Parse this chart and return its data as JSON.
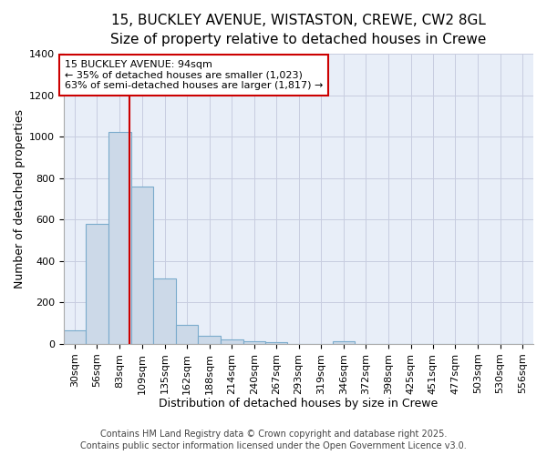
{
  "title_line1": "15, BUCKLEY AVENUE, WISTASTON, CREWE, CW2 8GL",
  "title_line2": "Size of property relative to detached houses in Crewe",
  "xlabel": "Distribution of detached houses by size in Crewe",
  "ylabel": "Number of detached properties",
  "bar_color": "#ccd9e8",
  "bar_edge_color": "#7aabcc",
  "background_color": "#e8eef8",
  "grid_color": "#c8cce0",
  "categories": [
    "30sqm",
    "56sqm",
    "83sqm",
    "109sqm",
    "135sqm",
    "162sqm",
    "188sqm",
    "214sqm",
    "240sqm",
    "267sqm",
    "293sqm",
    "319sqm",
    "346sqm",
    "372sqm",
    "398sqm",
    "425sqm",
    "451sqm",
    "477sqm",
    "503sqm",
    "530sqm",
    "556sqm"
  ],
  "bin_edges": [
    17,
    43,
    69,
    96,
    122,
    149,
    175,
    201,
    228,
    254,
    280,
    306,
    333,
    359,
    385,
    412,
    438,
    464,
    490,
    517,
    543,
    569
  ],
  "values": [
    65,
    580,
    1023,
    760,
    315,
    90,
    38,
    20,
    12,
    10,
    0,
    0,
    12,
    0,
    0,
    0,
    0,
    0,
    0,
    0,
    0
  ],
  "ylim": [
    0,
    1400
  ],
  "yticks": [
    0,
    200,
    400,
    600,
    800,
    1000,
    1200,
    1400
  ],
  "red_line_value": 94,
  "annotation_title": "15 BUCKLEY AVENUE: 94sqm",
  "annotation_line1": "← 35% of detached houses are smaller (1,023)",
  "annotation_line2": "63% of semi-detached houses are larger (1,817) →",
  "annotation_box_color": "#ffffff",
  "annotation_box_edge": "#cc0000",
  "red_line_color": "#cc0000",
  "footer_line1": "Contains HM Land Registry data © Crown copyright and database right 2025.",
  "footer_line2": "Contains public sector information licensed under the Open Government Licence v3.0.",
  "title_fontsize": 11,
  "subtitle_fontsize": 10,
  "tick_fontsize": 8,
  "axis_label_fontsize": 9,
  "annotation_fontsize": 8,
  "footer_fontsize": 7
}
